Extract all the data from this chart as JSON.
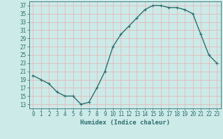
{
  "x": [
    0,
    1,
    2,
    3,
    4,
    5,
    6,
    7,
    8,
    9,
    10,
    11,
    12,
    13,
    14,
    15,
    16,
    17,
    18,
    19,
    20,
    21,
    22,
    23
  ],
  "y": [
    20,
    19,
    18,
    16,
    15,
    15,
    13,
    13.5,
    17,
    21,
    27,
    30,
    32,
    34,
    36,
    37,
    37,
    36.5,
    36.5,
    36,
    35,
    30,
    25,
    23
  ],
  "line_color": "#2d6e6e",
  "marker": "+",
  "marker_size": 3,
  "bg_color": "#cceae8",
  "grid_color": "#e8b0b0",
  "xlabel": "Humidex (Indice chaleur)",
  "xlim": [
    -0.5,
    23.5
  ],
  "ylim": [
    12,
    38
  ],
  "yticks": [
    13,
    15,
    17,
    19,
    21,
    23,
    25,
    27,
    29,
    31,
    33,
    35,
    37
  ],
  "xticks": [
    0,
    1,
    2,
    3,
    4,
    5,
    6,
    7,
    8,
    9,
    10,
    11,
    12,
    13,
    14,
    15,
    16,
    17,
    18,
    19,
    20,
    21,
    22,
    23
  ],
  "tick_label_size": 5.5,
  "xlabel_size": 6.5,
  "linewidth": 1.0,
  "markeredgewidth": 0.8
}
